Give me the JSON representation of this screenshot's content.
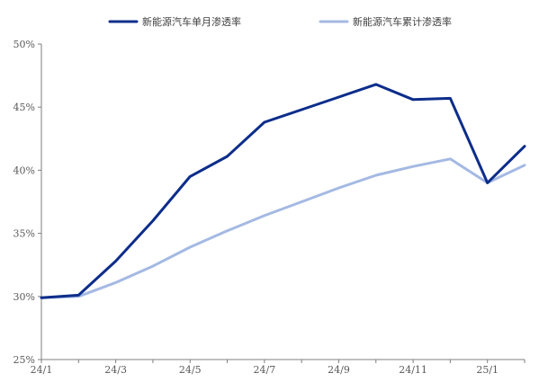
{
  "chart_data": {
    "type": "line",
    "x": [
      "24/1",
      "24/2",
      "24/3",
      "24/4",
      "24/5",
      "24/6",
      "24/7",
      "24/8",
      "24/9",
      "24/10",
      "24/11",
      "24/12",
      "25/1",
      "25/2"
    ],
    "x_tick_labels": [
      "24/1",
      "24/3",
      "24/5",
      "24/7",
      "24/9",
      "24/11",
      "25/1"
    ],
    "y_tick_labels": [
      "25%",
      "30%",
      "35%",
      "40%",
      "45%",
      "50%"
    ],
    "ylim": [
      25,
      50
    ],
    "y_unit": "%",
    "grid": false,
    "legend_position": "top",
    "series": [
      {
        "name": "新能源汽车单月渗透率",
        "color": "#0c2d8a",
        "values": [
          29.9,
          30.1,
          32.8,
          36.0,
          39.5,
          41.1,
          43.8,
          44.8,
          45.8,
          46.8,
          45.6,
          45.7,
          39.0,
          41.9
        ]
      },
      {
        "name": "新能源汽车累计渗透率",
        "color": "#a4b9e3",
        "values": [
          29.9,
          30.0,
          31.1,
          32.4,
          33.9,
          35.2,
          36.4,
          37.5,
          38.6,
          39.6,
          40.3,
          40.9,
          39.0,
          40.4
        ]
      }
    ]
  }
}
